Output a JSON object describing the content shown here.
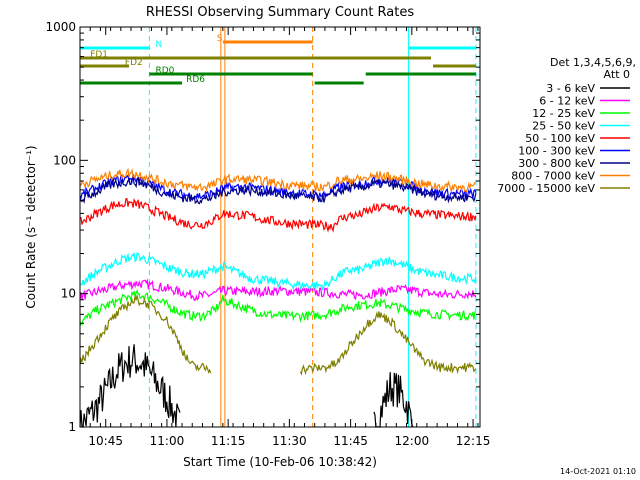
{
  "chart_data": {
    "type": "line",
    "title": "RHESSI Observing Summary Count Rates",
    "xlabel": "Start Time (10-Feb-06 10:38:42)",
    "ylabel": "Count Rate (s⁻¹ detector⁻¹)",
    "ylog": true,
    "ylim": [
      1,
      1000
    ],
    "xlim_minutes": [
      0,
      98
    ],
    "yticks": [
      {
        "value": 1,
        "label": "1"
      },
      {
        "value": 10,
        "label": "10"
      },
      {
        "value": 100,
        "label": "100"
      },
      {
        "value": 1000,
        "label": "1000"
      }
    ],
    "xticks": [
      {
        "minute": 6.3,
        "label": "10:45"
      },
      {
        "minute": 21.3,
        "label": "11:00"
      },
      {
        "minute": 36.3,
        "label": "11:15"
      },
      {
        "minute": 51.3,
        "label": "11:30"
      },
      {
        "minute": 66.3,
        "label": "11:45"
      },
      {
        "minute": 81.3,
        "label": "12:00"
      },
      {
        "minute": 96.3,
        "label": "12:15"
      }
    ],
    "legend": {
      "position": "right",
      "header": [
        "Det 1,3,4,5,6,9,",
        "Att 0"
      ]
    },
    "series": [
      {
        "name": "3 - 6 keV",
        "color": "#000000",
        "points": [
          [
            0,
            1.0
          ],
          [
            4,
            1.4
          ],
          [
            7,
            2.0
          ],
          [
            9,
            2.6
          ],
          [
            11,
            3.0
          ],
          [
            13,
            3.2
          ],
          [
            15,
            3.0
          ],
          [
            17,
            2.6
          ],
          [
            19,
            2.1
          ],
          [
            21,
            1.7
          ],
          [
            23,
            1.3
          ],
          [
            24.5,
            1.0
          ],
          [
            72,
            1.0
          ],
          [
            74,
            1.4
          ],
          [
            76,
            2.0
          ],
          [
            78,
            1.9
          ],
          [
            80,
            1.5
          ],
          [
            81.5,
            1.0
          ]
        ]
      },
      {
        "name": "6 - 12 keV",
        "color": "#ff00ff",
        "points": [
          [
            0,
            9.5
          ],
          [
            5,
            10.5
          ],
          [
            10,
            11.5
          ],
          [
            14,
            12
          ],
          [
            18,
            11.5
          ],
          [
            22,
            10.8
          ],
          [
            26,
            10
          ],
          [
            28,
            9.7
          ],
          [
            30,
            9.6
          ],
          [
            33,
            10
          ],
          [
            35,
            10.5
          ],
          [
            42,
            10.3
          ],
          [
            50,
            10.5
          ],
          [
            56,
            10.3
          ],
          [
            60,
            10.2
          ],
          [
            63,
            10
          ],
          [
            66,
            9.8
          ],
          [
            70,
            9.8
          ],
          [
            73,
            10.2
          ],
          [
            78,
            10.8
          ],
          [
            82,
            10.5
          ],
          [
            86,
            10
          ],
          [
            90,
            9.8
          ],
          [
            94,
            10
          ],
          [
            97,
            10
          ]
        ]
      },
      {
        "name": "12 - 25 keV",
        "color": "#00ff00",
        "points": [
          [
            0,
            6.0
          ],
          [
            4,
            7.5
          ],
          [
            8,
            8.5
          ],
          [
            12,
            9.5
          ],
          [
            14,
            9.8
          ],
          [
            17,
            9.5
          ],
          [
            21,
            8.3
          ],
          [
            24,
            7.4
          ],
          [
            26,
            7.0
          ],
          [
            28,
            6.8
          ],
          [
            30,
            6.8
          ],
          [
            33,
            7.5
          ],
          [
            35,
            9.0
          ],
          [
            42,
            7.5
          ],
          [
            46,
            7.0
          ],
          [
            50,
            6.8
          ],
          [
            54,
            6.8
          ],
          [
            58,
            6.9
          ],
          [
            60,
            7.0
          ],
          [
            63,
            7.5
          ],
          [
            66,
            8.0
          ],
          [
            70,
            8.3
          ],
          [
            73,
            8.5
          ],
          [
            76,
            8.2
          ],
          [
            80,
            7.6
          ],
          [
            84,
            7.2
          ],
          [
            88,
            7.0
          ],
          [
            92,
            6.9
          ],
          [
            97,
            6.9
          ]
        ]
      },
      {
        "name": "25 - 50 keV",
        "color": "#00ffff",
        "points": [
          [
            0,
            12
          ],
          [
            5,
            15
          ],
          [
            10,
            18
          ],
          [
            14,
            19
          ],
          [
            18,
            17.5
          ],
          [
            22,
            15.5
          ],
          [
            26,
            14.2
          ],
          [
            30,
            14
          ],
          [
            32,
            14.8
          ],
          [
            35,
            16
          ],
          [
            42,
            13
          ],
          [
            50,
            12
          ],
          [
            55,
            11.5
          ],
          [
            60,
            11.5
          ],
          [
            63,
            13.5
          ],
          [
            66,
            15
          ],
          [
            68,
            15
          ],
          [
            70,
            15.5
          ],
          [
            73,
            17
          ],
          [
            75,
            18
          ],
          [
            78,
            17
          ],
          [
            82,
            15
          ],
          [
            86,
            14
          ],
          [
            90,
            13.5
          ],
          [
            94,
            13
          ],
          [
            97,
            13
          ]
        ]
      },
      {
        "name": "50 - 100 keV",
        "color": "#ff0000",
        "points": [
          [
            0,
            34
          ],
          [
            4,
            40
          ],
          [
            8,
            46
          ],
          [
            12,
            48
          ],
          [
            15,
            46
          ],
          [
            18,
            42
          ],
          [
            22,
            37
          ],
          [
            26,
            33.5
          ],
          [
            28,
            33
          ],
          [
            30,
            33
          ],
          [
            33,
            36
          ],
          [
            35,
            40
          ],
          [
            42,
            38
          ],
          [
            45,
            36
          ],
          [
            50,
            34
          ],
          [
            55,
            33
          ],
          [
            59,
            32.5
          ],
          [
            62,
            32
          ],
          [
            63,
            35.5
          ],
          [
            66,
            38.5
          ],
          [
            68,
            38.5
          ],
          [
            70,
            41
          ],
          [
            73,
            44
          ],
          [
            76,
            45
          ],
          [
            79,
            42
          ],
          [
            83,
            40
          ],
          [
            88,
            39
          ],
          [
            92,
            38
          ],
          [
            97,
            38
          ]
        ]
      },
      {
        "name": "100 - 300 keV",
        "color": "#0000ff",
        "points": [
          [
            0,
            54
          ],
          [
            4,
            62
          ],
          [
            8,
            70
          ],
          [
            12,
            74
          ],
          [
            15,
            72
          ],
          [
            18,
            65
          ],
          [
            22,
            58
          ],
          [
            26,
            55
          ],
          [
            28,
            54
          ],
          [
            30,
            54
          ],
          [
            33,
            57
          ],
          [
            35,
            62
          ],
          [
            40,
            63
          ],
          [
            45,
            61
          ],
          [
            50,
            58
          ],
          [
            55,
            56
          ],
          [
            60,
            55
          ],
          [
            63,
            62
          ],
          [
            66,
            66
          ],
          [
            68,
            66
          ],
          [
            70,
            68
          ],
          [
            73,
            71
          ],
          [
            76,
            70
          ],
          [
            80,
            66
          ],
          [
            84,
            60
          ],
          [
            88,
            57
          ],
          [
            92,
            56
          ],
          [
            97,
            56
          ]
        ]
      },
      {
        "name": "300 - 800 keV",
        "color": "#00008b",
        "points": [
          [
            0,
            50
          ],
          [
            4,
            58
          ],
          [
            8,
            66
          ],
          [
            12,
            70
          ],
          [
            15,
            68
          ],
          [
            18,
            62
          ],
          [
            22,
            55
          ],
          [
            26,
            52
          ],
          [
            28,
            51
          ],
          [
            30,
            51
          ],
          [
            33,
            53
          ],
          [
            35,
            58
          ],
          [
            40,
            60
          ],
          [
            45,
            58
          ],
          [
            50,
            55
          ],
          [
            55,
            53
          ],
          [
            60,
            52
          ],
          [
            63,
            58
          ],
          [
            66,
            62
          ],
          [
            68,
            62
          ],
          [
            70,
            64
          ],
          [
            73,
            67
          ],
          [
            76,
            66
          ],
          [
            80,
            62
          ],
          [
            84,
            57
          ],
          [
            88,
            54
          ],
          [
            92,
            53
          ],
          [
            97,
            53
          ]
        ]
      },
      {
        "name": "800 - 7000 keV",
        "color": "#ff8000",
        "points": [
          [
            0,
            66
          ],
          [
            4,
            72
          ],
          [
            8,
            78
          ],
          [
            12,
            80
          ],
          [
            15,
            78
          ],
          [
            18,
            72
          ],
          [
            22,
            67
          ],
          [
            26,
            64
          ],
          [
            28,
            63
          ],
          [
            30,
            63
          ],
          [
            33,
            66
          ],
          [
            35,
            72
          ],
          [
            40,
            72
          ],
          [
            45,
            70
          ],
          [
            50,
            66
          ],
          [
            55,
            64
          ],
          [
            60,
            63
          ],
          [
            63,
            70
          ],
          [
            66,
            72
          ],
          [
            68,
            72
          ],
          [
            70,
            73
          ],
          [
            73,
            77
          ],
          [
            76,
            75
          ],
          [
            80,
            70
          ],
          [
            84,
            66
          ],
          [
            88,
            64
          ],
          [
            92,
            63
          ],
          [
            97,
            63
          ]
        ]
      },
      {
        "name": "7000 - 15000 keV",
        "color": "#808000",
        "points": [
          [
            0,
            3.0
          ],
          [
            4,
            4.5
          ],
          [
            8,
            6.5
          ],
          [
            12,
            8.5
          ],
          [
            14,
            9.0
          ],
          [
            17,
            8.3
          ],
          [
            21,
            6.5
          ],
          [
            24,
            4.5
          ],
          [
            26,
            3.3
          ],
          [
            28,
            2.8
          ],
          [
            30,
            2.8
          ],
          [
            32,
            2.7
          ],
          [
            54,
            2.7
          ],
          [
            60,
            2.8
          ],
          [
            63,
            3.0
          ],
          [
            66,
            4.0
          ],
          [
            70,
            5.8
          ],
          [
            73,
            7.0
          ],
          [
            76,
            6.3
          ],
          [
            80,
            4.5
          ],
          [
            84,
            3.2
          ],
          [
            88,
            2.8
          ],
          [
            92,
            2.8
          ],
          [
            97,
            2.8
          ]
        ]
      }
    ],
    "top_bars": [
      {
        "label": "N",
        "color": "#00ffff",
        "label_at": 18.5,
        "segments": [
          [
            0,
            17
          ],
          [
            80.5,
            97
          ]
        ]
      },
      {
        "label": "S",
        "color": "#ff8000",
        "label_at": 33.5,
        "segments": [
          [
            35,
            57
          ]
        ]
      },
      {
        "label": "FD1",
        "color": "#808000",
        "label_at": 2.5,
        "segments": [
          [
            0,
            86
          ]
        ]
      },
      {
        "label": "FD2",
        "color": "#808000",
        "label_at": 11,
        "segments": [
          [
            0,
            12
          ],
          [
            86.5,
            97
          ]
        ]
      },
      {
        "label": "RD0",
        "color": "#008000",
        "label_at": 18.5,
        "segments": [
          [
            17,
            57
          ],
          [
            70,
            97
          ]
        ]
      },
      {
        "label": "RD6",
        "color": "#008000",
        "label_at": 26,
        "segments": [
          [
            0,
            25
          ],
          [
            57.5,
            69.5
          ]
        ]
      }
    ],
    "vlines": [
      {
        "minute": 17,
        "color": "#00ffff",
        "dash": true
      },
      {
        "minute": 34.5,
        "color": "#ff8000",
        "dash": false
      },
      {
        "minute": 35.5,
        "color": "#ff8000",
        "dash": false
      },
      {
        "minute": 57,
        "color": "#ff8000",
        "dash": true
      },
      {
        "minute": 80.5,
        "color": "#00ffff",
        "dash": false
      },
      {
        "minute": 97,
        "color": "#00ffff",
        "dash": true
      }
    ],
    "footer_timestamp": "14-Oct-2021 01:10"
  }
}
